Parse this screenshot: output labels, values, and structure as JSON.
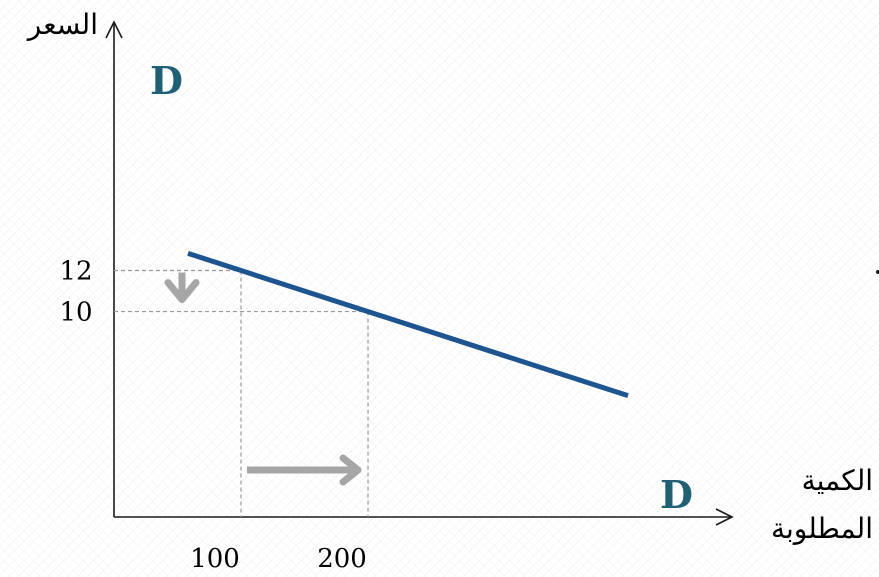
{
  "chart_data": {
    "type": "line",
    "ylabel": "السعر",
    "xlabel_lines": [
      "الكمية",
      "المطلوبة"
    ],
    "curve_label": "D",
    "series": [
      {
        "name": "D",
        "x": [
          100,
          200
        ],
        "y": [
          12,
          10
        ]
      }
    ],
    "y_ticks": [
      {
        "value": 12,
        "label": "12"
      },
      {
        "value": 10,
        "label": "10"
      }
    ],
    "x_ticks": [
      {
        "value": 100,
        "label": "100"
      },
      {
        "value": 200,
        "label": "200"
      }
    ],
    "xlim": [
      0,
      485
    ],
    "ylim": [
      0,
      24
    ],
    "grid": false,
    "annotations": [
      {
        "kind": "arrow-down",
        "from": 12,
        "to": 10,
        "axis": "price"
      },
      {
        "kind": "arrow-right",
        "from": 100,
        "to": 200,
        "axis": "quantity"
      }
    ],
    "colors": {
      "demand": "#1e5590",
      "label": "#1f6075",
      "arrows": "#a6a6a6"
    }
  }
}
